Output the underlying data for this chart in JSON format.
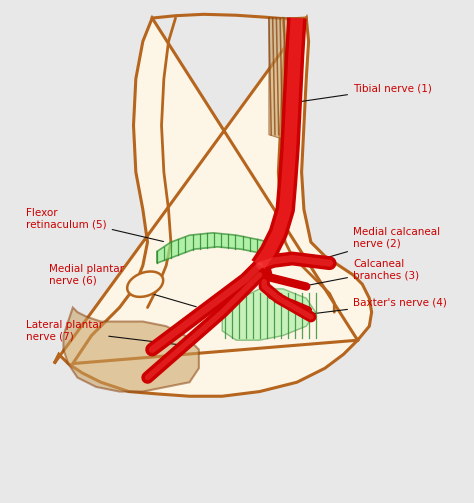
{
  "background_color": "#e8e8e8",
  "skin_color": "#b5651d",
  "skin_fill": "#fdf5e6",
  "nerve_red": "#cc0000",
  "nerve_green": "#2d8a2d",
  "brown_dark": "#8B4513",
  "annotation_red": "#cc0000",
  "annotation_black": "#111111",
  "labels": {
    "tibial_nerve": "Tibial nerve (1)",
    "medial_calcaneal": "Medial calcaneal\nnerve (2)",
    "calcaneal_branches": "Calcaneal\nbranches (3)",
    "baxters_nerve": "Baxter's nerve (4)",
    "flexor_retinaculum": "Flexor\nretinaculum (5)",
    "medial_plantar": "Medial plantar\nnerve (6)",
    "lateral_plantar": "Lateral plantar\nnerve (7)"
  }
}
